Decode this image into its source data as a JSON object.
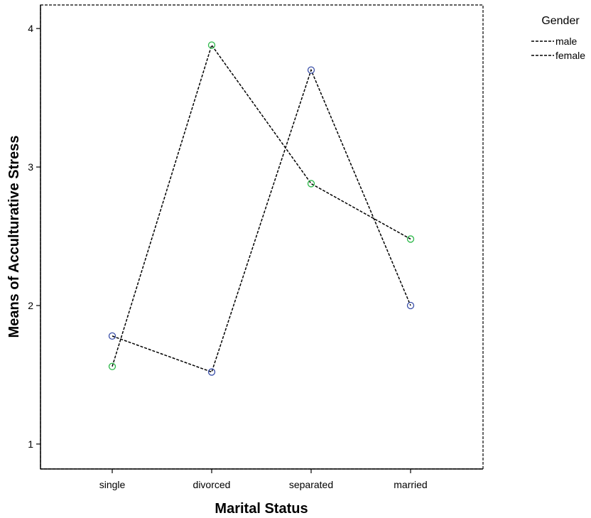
{
  "chart_data": {
    "type": "line",
    "xlabel": "Marital Status",
    "ylabel": "Means of Acculturative Stress",
    "categories": [
      "single",
      "divorced",
      "separated",
      "married"
    ],
    "yticks": [
      1,
      2,
      3,
      4
    ],
    "ylim": [
      0.82,
      4.17
    ],
    "grid": false,
    "legend": {
      "title": "Gender",
      "placement": "right"
    },
    "series": [
      {
        "name": "male",
        "values": [
          1.78,
          1.52,
          3.7,
          2.0
        ],
        "marker_color": "#3a4fa8",
        "line_color": "#000000",
        "line_style": "dashed"
      },
      {
        "name": "female",
        "values": [
          1.56,
          3.88,
          2.88,
          2.48
        ],
        "marker_color": "#2db84a",
        "line_color": "#000000",
        "line_style": "dashed"
      }
    ]
  }
}
